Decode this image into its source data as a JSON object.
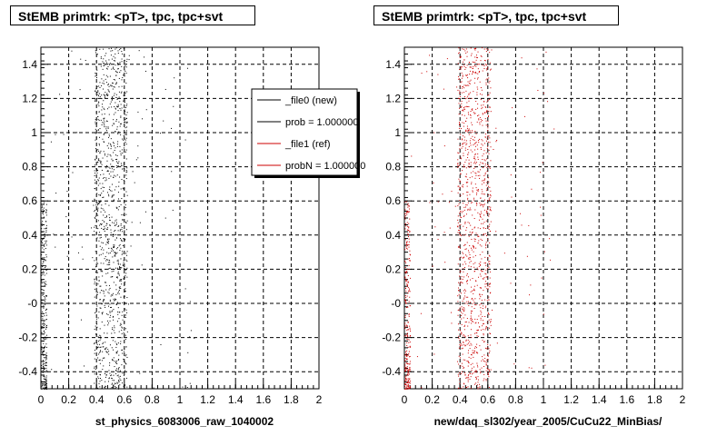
{
  "chart_data": [
    {
      "type": "scatter",
      "title": "StEMB primtrk: <pT>, tpc, tpc+svt",
      "xlabel": "st_physics_6083006_raw_1040002",
      "xlim": [
        0,
        2
      ],
      "ylim": [
        -0.5,
        1.5
      ],
      "xticks": [
        "0",
        "0.2",
        "0.4",
        "0.6",
        "0.8",
        "1",
        "1.2",
        "1.4",
        "1.6",
        "1.8",
        "2"
      ],
      "yticks": [
        "-0.4",
        "-0.2",
        "-0",
        "0.2",
        "0.4",
        "0.6",
        "0.8",
        "1",
        "1.2",
        "1.4"
      ],
      "grid": true,
      "series": [
        {
          "name": "_file0 (new)",
          "color": "#000000",
          "band_x": [
            0.38,
            0.62
          ],
          "edge_x": [
            0.0,
            0.04
          ]
        }
      ],
      "legend": {
        "placement": "top-right",
        "entries": [
          {
            "label": "_file0 (new)",
            "color": "#000000"
          },
          {
            "label": "prob = 1.000000",
            "color": "#000000"
          },
          {
            "label": "_file1 (ref)",
            "color": "#cc0000"
          },
          {
            "label": "probN = 1.000000",
            "color": "#cc0000"
          }
        ]
      }
    },
    {
      "type": "scatter",
      "title": "StEMB primtrk: <pT>, tpc, tpc+svt",
      "xlabel": "new/daq_sl302/year_2005/CuCu22_MinBias/",
      "xlim": [
        0,
        2
      ],
      "ylim": [
        -0.5,
        1.5
      ],
      "xticks": [
        "0",
        "0.2",
        "0.4",
        "0.6",
        "0.8",
        "1",
        "1.2",
        "1.4",
        "1.6",
        "1.8",
        "2"
      ],
      "yticks": [
        "-0.4",
        "-0.2",
        "-0",
        "0.2",
        "0.4",
        "0.6",
        "0.8",
        "1",
        "1.2",
        "1.4"
      ],
      "grid": true,
      "series": [
        {
          "name": "_file1 (ref)",
          "color": "#cc0000",
          "band_x": [
            0.38,
            0.62
          ],
          "edge_x": [
            0.0,
            0.04
          ]
        }
      ]
    }
  ]
}
